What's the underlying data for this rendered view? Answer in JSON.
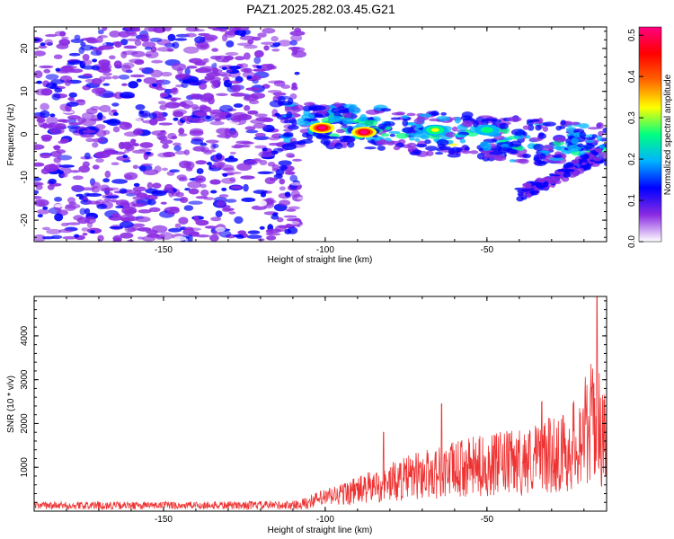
{
  "title": "PAZ1.2025.282.03.45.G21",
  "chart_data": [
    {
      "type": "heatmap",
      "xlabel": "Height of straight line (km)",
      "ylabel": "Frequency (Hz)",
      "xlim": [
        -190,
        -13
      ],
      "ylim": [
        -25,
        25
      ],
      "xticks": [
        -150,
        -100,
        -50
      ],
      "yticks": [
        -20,
        -10,
        0,
        10,
        20
      ],
      "colorbar": {
        "label": "Normalized spectral amplitude",
        "range": [
          0,
          0.52
        ],
        "ticks": [
          0.0,
          0.1,
          0.2,
          0.3,
          0.4,
          0.5
        ],
        "colors": [
          "#ffffff",
          "#8a2be2",
          "#0000ff",
          "#00b4ff",
          "#00ff80",
          "#ffff00",
          "#ff6600",
          "#ff0000",
          "#ff0080"
        ]
      },
      "features": {
        "noise_region_x": [
          -190,
          -108
        ],
        "main_band": {
          "x_start": -113,
          "freq_at_start": 3,
          "x_end": -13,
          "freq_at_end": -3
        },
        "hotspots": [
          {
            "x": -101,
            "freq": 1.5,
            "amp": 0.5
          },
          {
            "x": -88,
            "freq": 0.5,
            "amp": 0.5
          },
          {
            "x": -66,
            "freq": 1,
            "amp": 0.3
          },
          {
            "x": -50,
            "freq": 1,
            "amp": 0.25
          }
        ],
        "branch": {
          "x_start": -40,
          "freq_at_start": -14,
          "x_end": -15,
          "freq_at_end": -5
        }
      }
    },
    {
      "type": "line",
      "xlabel": "Height of straight line (km)",
      "ylabel": "SNR (10 * v/v)",
      "xlim": [
        -190,
        -13
      ],
      "ylim": [
        0,
        4900
      ],
      "xticks": [
        -150,
        -100,
        -50
      ],
      "yticks": [
        1000,
        2000,
        3000,
        4000
      ],
      "color": "#ee3333",
      "profile": [
        {
          "x": -190,
          "snr": 150
        },
        {
          "x": -110,
          "snr": 170
        },
        {
          "x": -100,
          "snr": 380
        },
        {
          "x": -85,
          "snr": 700
        },
        {
          "x": -70,
          "snr": 1050
        },
        {
          "x": -55,
          "snr": 1250
        },
        {
          "x": -40,
          "snr": 1400
        },
        {
          "x": -25,
          "snr": 1700
        },
        {
          "x": -17,
          "snr": 2600
        },
        {
          "x": -13,
          "snr": 2000
        }
      ],
      "peaks": [
        {
          "x": -82,
          "snr": 1800
        },
        {
          "x": -64,
          "snr": 2450
        },
        {
          "x": -33,
          "snr": 2500
        },
        {
          "x": -16,
          "snr": 4900
        }
      ]
    }
  ]
}
